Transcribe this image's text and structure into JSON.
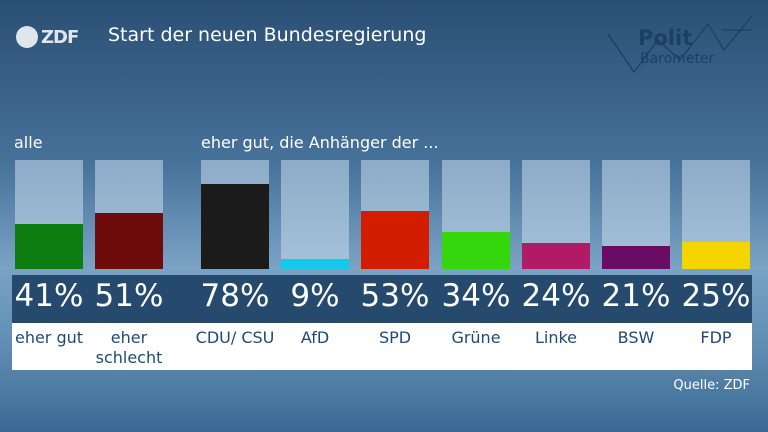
{
  "header": {
    "brand": "ZDF",
    "title": "Start der neuen Bundesregierung",
    "badge_line1": "Polit",
    "badge_line2": "Barometer"
  },
  "sections": {
    "all": "alle",
    "supporters": "eher gut, die Anhänger der ..."
  },
  "source": "Quelle: ZDF",
  "chart_data": {
    "type": "bar",
    "title": "Start der neuen Bundesregierung",
    "ylim": [
      0,
      100
    ],
    "categories": [
      "eher gut",
      "eher schlecht",
      "CDU/ CSU",
      "AfD",
      "SPD",
      "Grüne",
      "Linke",
      "BSW",
      "FDP"
    ],
    "values": [
      41,
      51,
      78,
      9,
      53,
      34,
      24,
      21,
      25
    ],
    "value_labels": [
      "41%",
      "51%",
      "78%",
      "9%",
      "53%",
      "34%",
      "24%",
      "21%",
      "25%"
    ],
    "colors": [
      "#0d7d12",
      "#6e0c0c",
      "#1b1b1b",
      "#15c8ee",
      "#d21d00",
      "#35d70c",
      "#b01b66",
      "#6a0b64",
      "#f5d500"
    ]
  }
}
